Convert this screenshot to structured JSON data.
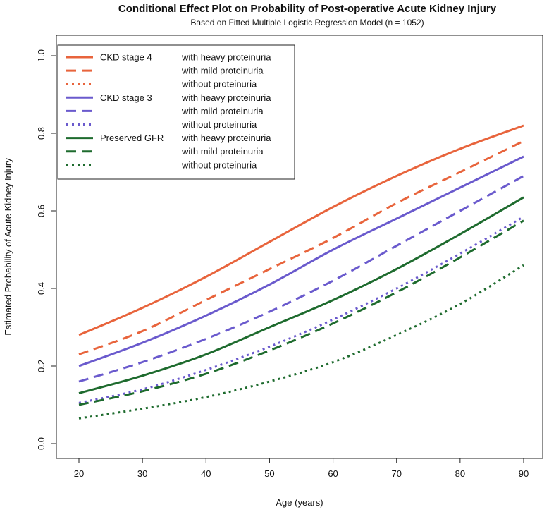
{
  "chart_data": {
    "type": "line",
    "title": "Conditional Effect Plot on Probability of Post-operative Acute Kidney Injury",
    "subtitle": "Based on Fitted Multiple Logistic Regression Model (n = 1052)",
    "xlabel": "Age (years)",
    "ylabel": "Estimated Probability of Acute Kidney Injury",
    "xlim": [
      20,
      90
    ],
    "ylim": [
      0.0,
      1.0
    ],
    "x_ticks": [
      "20",
      "30",
      "40",
      "50",
      "60",
      "70",
      "80",
      "90"
    ],
    "y_ticks": [
      "0.0",
      "0.2",
      "0.4",
      "0.6",
      "0.8",
      "1.0"
    ],
    "grid": false,
    "legend_position": "top-left",
    "x": [
      20,
      30,
      40,
      50,
      60,
      70,
      80,
      90
    ],
    "series": [
      {
        "group": "CKD stage 4",
        "name": "with heavy proteinuria",
        "color": "#e8643c",
        "dash": "solid",
        "values": [
          0.28,
          0.35,
          0.43,
          0.52,
          0.61,
          0.69,
          0.76,
          0.82
        ]
      },
      {
        "group": "",
        "name": "with mild proteinuria",
        "color": "#e8643c",
        "dash": "dashed",
        "values": [
          0.23,
          0.29,
          0.37,
          0.45,
          0.53,
          0.62,
          0.7,
          0.78
        ]
      },
      {
        "group": "",
        "name": "without proteinuria",
        "color": "#e8643c",
        "dash": "dotted",
        "values": [
          null,
          null,
          null,
          null,
          null,
          null,
          null,
          null
        ]
      },
      {
        "group": "CKD stage 3",
        "name": "with heavy proteinuria",
        "color": "#6a5acd",
        "dash": "solid",
        "values": [
          0.2,
          0.26,
          0.33,
          0.41,
          0.5,
          0.58,
          0.66,
          0.74
        ]
      },
      {
        "group": "",
        "name": "with mild proteinuria",
        "color": "#6a5acd",
        "dash": "dashed",
        "values": [
          0.16,
          0.21,
          0.27,
          0.34,
          0.42,
          0.51,
          0.6,
          0.69
        ]
      },
      {
        "group": "",
        "name": "without proteinuria",
        "color": "#6a5acd",
        "dash": "dotted",
        "values": [
          0.105,
          0.14,
          0.19,
          0.25,
          0.32,
          0.4,
          0.49,
          0.585
        ]
      },
      {
        "group": "Preserved GFR",
        "name": "with heavy proteinuria",
        "color": "#1e6b2e",
        "dash": "solid",
        "values": [
          0.13,
          0.175,
          0.23,
          0.3,
          0.37,
          0.45,
          0.54,
          0.635
        ]
      },
      {
        "group": "",
        "name": "with mild proteinuria",
        "color": "#1e6b2e",
        "dash": "dashed",
        "values": [
          0.1,
          0.135,
          0.18,
          0.24,
          0.31,
          0.39,
          0.48,
          0.575
        ]
      },
      {
        "group": "",
        "name": "without proteinuria",
        "color": "#1e6b2e",
        "dash": "dotted",
        "values": [
          0.065,
          0.09,
          0.12,
          0.16,
          0.21,
          0.28,
          0.36,
          0.46
        ]
      }
    ]
  }
}
